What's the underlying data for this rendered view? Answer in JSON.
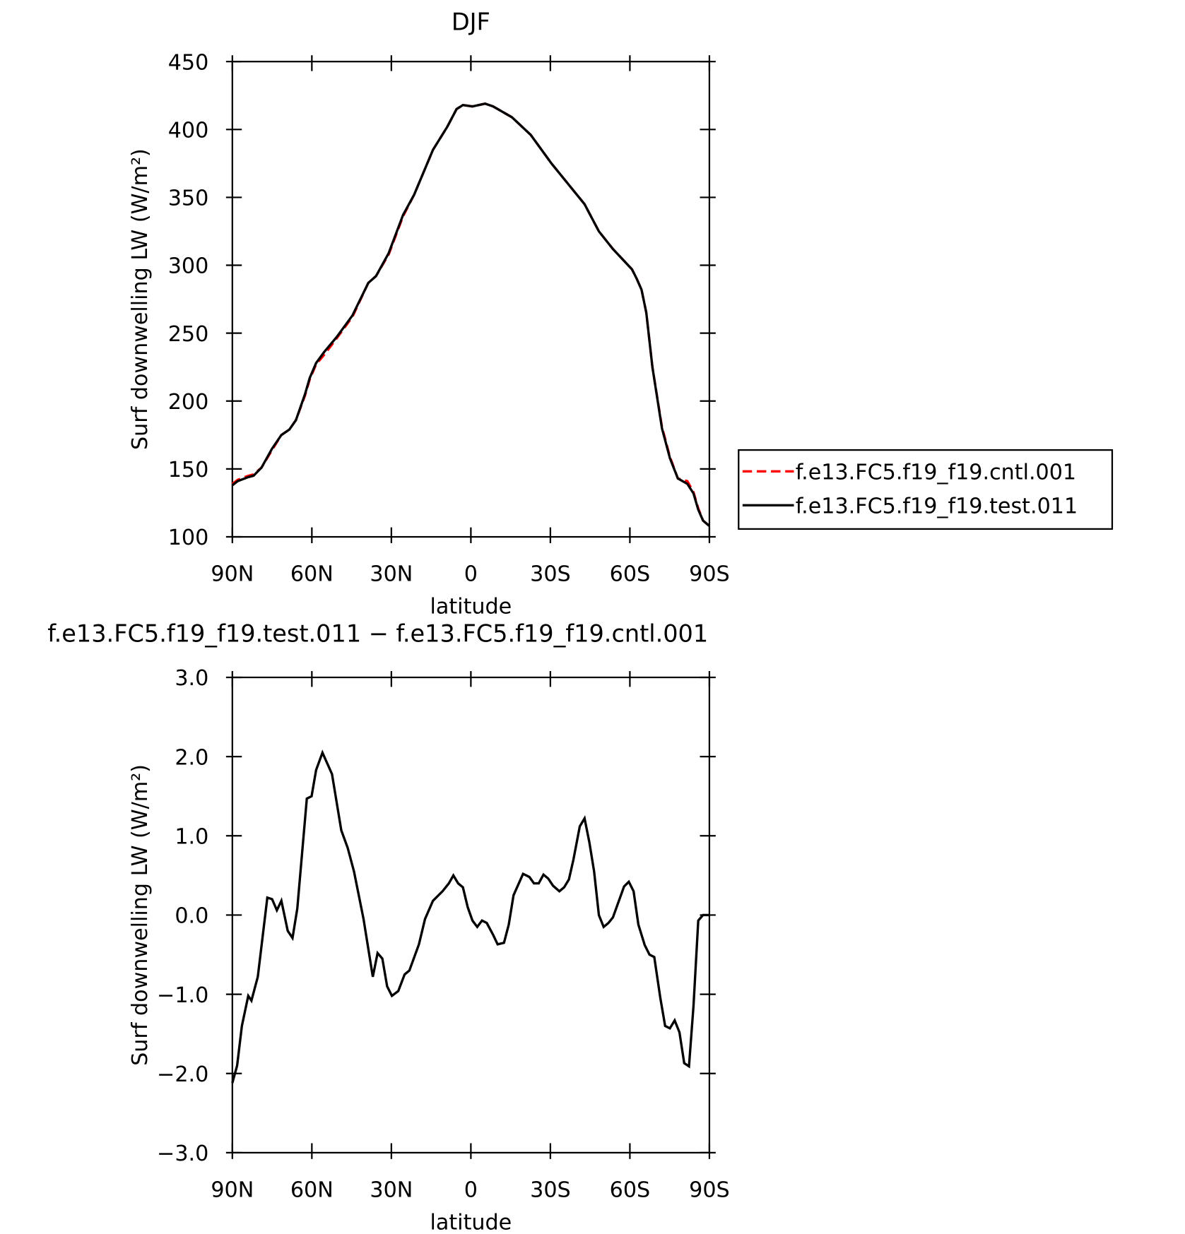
{
  "chart_data": [
    {
      "type": "line",
      "title": "DJF",
      "xlabel": "latitude",
      "ylabel": "Surf downwelling LW (W/m²)",
      "x": [
        90,
        88,
        84,
        82,
        79,
        75,
        71.5,
        68.5,
        66,
        62.6,
        60.8,
        58.4,
        55.4,
        50.7,
        44.7,
        38.7,
        35.8,
        31,
        25.6,
        21.4,
        14.3,
        8.9,
        5.4,
        3,
        -0.6,
        -5.4,
        -8.4,
        -15.5,
        -22.6,
        -30.4,
        -42.9,
        -48.3,
        -53.6,
        -60.8,
        -62.6,
        -64.4,
        -66.2,
        -68.5,
        -72.1,
        -75.1,
        -78.1,
        -81.7,
        -84,
        -85.8,
        -87.6,
        -90
      ],
      "series": [
        {
          "name": "f.e13.FC5.f19_f19.cntl.001",
          "color": "#ff0000",
          "dash": "dashed",
          "values": [
            139,
            142,
            145,
            146,
            151,
            164,
            175,
            179,
            186,
            204,
            216,
            227,
            234,
            246,
            262,
            287,
            292,
            308,
            336,
            352,
            385,
            402,
            415,
            418,
            417,
            419,
            417,
            409,
            396,
            375,
            345,
            325,
            312,
            297,
            290,
            282,
            265,
            225,
            181,
            159,
            143,
            141,
            133,
            121,
            112,
            108
          ]
        },
        {
          "name": "f.e13.FC5.f19_f19.test.011",
          "color": "#000000",
          "dash": "solid",
          "values": [
            138,
            141,
            144,
            145,
            151,
            165,
            175,
            179,
            186,
            205,
            217,
            228,
            236,
            247,
            263,
            287,
            292,
            309,
            337,
            352,
            385,
            402,
            415,
            418,
            417,
            419,
            417,
            409,
            396,
            375,
            345,
            325,
            312,
            297,
            290,
            282,
            265,
            225,
            180,
            158,
            143,
            139,
            132,
            120,
            112,
            108
          ]
        }
      ],
      "xlim": [
        90,
        -90
      ],
      "ylim": [
        100,
        450
      ],
      "xticks": [
        {
          "value": 90,
          "label": "90N"
        },
        {
          "value": 60,
          "label": "60N"
        },
        {
          "value": 30,
          "label": "30N"
        },
        0,
        {
          "value": -30,
          "label": "30S"
        },
        {
          "value": -60,
          "label": "60S"
        },
        {
          "value": -90,
          "label": "90S"
        }
      ],
      "yticks": [
        100,
        150,
        200,
        250,
        300,
        350,
        400,
        450
      ],
      "legend": "right"
    },
    {
      "type": "line",
      "title": "f.e13.FC5.f19_f19.test.011 − f.e13.FC5.f19_f19.cntl.001",
      "xlabel": "latitude",
      "ylabel": "Surf downwelling LW (W/m²)",
      "x": [
        90,
        88.2,
        86.4,
        84,
        82.8,
        80.4,
        76.8,
        75,
        73.2,
        71.5,
        69.1,
        67.3,
        65.5,
        61.9,
        60.1,
        58.4,
        56,
        52.4,
        48.9,
        46.5,
        44.1,
        40.5,
        37,
        35.2,
        33.4,
        31.6,
        29.8,
        27.4,
        25,
        23.2,
        19.6,
        17.3,
        14.3,
        10.7,
        8.3,
        6.6,
        4.8,
        3,
        1.2,
        -0.6,
        -2.4,
        -4.2,
        -6,
        -8.4,
        -10.1,
        -12.5,
        -14.3,
        -16.1,
        -18.5,
        -19.7,
        -22.1,
        -23.8,
        -25.6,
        -27.4,
        -29.2,
        -31,
        -33.4,
        -35.2,
        -37,
        -38.7,
        -41.1,
        -42.9,
        -44.7,
        -46.5,
        -48.3,
        -50.1,
        -51.9,
        -53.6,
        -57.8,
        -59.6,
        -61.4,
        -63.2,
        -65.6,
        -67.4,
        -69.2,
        -71.5,
        -73.3,
        -75.1,
        -76.9,
        -78.7,
        -80.5,
        -82.3,
        -84,
        -85.8,
        -87.6,
        -90
      ],
      "series": [
        {
          "color": "#000000",
          "dash": "solid",
          "values": [
            -2.12,
            -1.9,
            -1.4,
            -1.02,
            -1.08,
            -0.78,
            0.22,
            0.2,
            0.06,
            0.18,
            -0.2,
            -0.29,
            0.08,
            1.47,
            1.5,
            1.83,
            2.05,
            1.78,
            1.07,
            0.85,
            0.55,
            -0.05,
            -0.78,
            -0.48,
            -0.55,
            -0.9,
            -1.02,
            -0.96,
            -0.75,
            -0.7,
            -0.37,
            -0.05,
            0.18,
            0.3,
            0.4,
            0.5,
            0.4,
            0.35,
            0.1,
            -0.07,
            -0.15,
            -0.07,
            -0.1,
            -0.25,
            -0.37,
            -0.35,
            -0.12,
            0.25,
            0.43,
            0.52,
            0.48,
            0.4,
            0.4,
            0.51,
            0.46,
            0.37,
            0.3,
            0.35,
            0.45,
            0.7,
            1.12,
            1.22,
            0.92,
            0.55,
            0.0,
            -0.15,
            -0.1,
            -0.03,
            0.36,
            0.42,
            0.3,
            -0.12,
            -0.38,
            -0.5,
            -0.53,
            -1.05,
            -1.4,
            -1.43,
            -1.33,
            -1.48,
            -1.87,
            -1.91,
            -1.15,
            -0.07,
            0.0,
            0.0
          ]
        }
      ],
      "xlim": [
        90,
        -90
      ],
      "ylim": [
        -3,
        3
      ],
      "xticks": [
        {
          "value": 90,
          "label": "90N"
        },
        {
          "value": 60,
          "label": "60N"
        },
        {
          "value": 30,
          "label": "30N"
        },
        0,
        {
          "value": -30,
          "label": "30S"
        },
        {
          "value": -60,
          "label": "60S"
        },
        {
          "value": -90,
          "label": "90S"
        }
      ],
      "yticks": [
        {
          "value": -3,
          "label": "−3.0"
        },
        {
          "value": -2,
          "label": "−2.0"
        },
        {
          "value": -1,
          "label": "−1.0"
        },
        {
          "value": 0,
          "label": "0.0"
        },
        {
          "value": 1,
          "label": "1.0"
        },
        {
          "value": 2,
          "label": "2.0"
        },
        {
          "value": 3,
          "label": "3.0"
        }
      ]
    }
  ]
}
